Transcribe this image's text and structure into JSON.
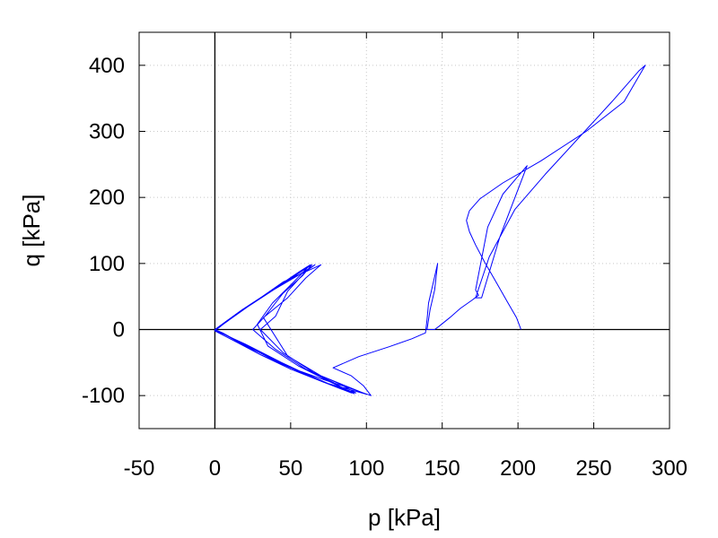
{
  "chart_data": {
    "type": "line",
    "xlabel": "p [kPa]",
    "ylabel": "q [kPa]",
    "xlim": [
      -50,
      300
    ],
    "ylim": [
      -150,
      450
    ],
    "x_ticks": [
      -50,
      0,
      50,
      100,
      150,
      200,
      250,
      300
    ],
    "y_ticks": [
      -100,
      0,
      100,
      200,
      300,
      400
    ],
    "x_tick_labels": [
      "-50",
      "0",
      "50",
      "100",
      "150",
      "200",
      "250",
      "300"
    ],
    "y_tick_labels": [
      "-100",
      "0",
      "100",
      "200",
      "300",
      "400"
    ],
    "grid": true,
    "zero_lines": true,
    "series_color": "#0000ff",
    "series": [
      {
        "points": [
          [
            202,
            0
          ],
          [
            199,
            18
          ],
          [
            193,
            42
          ],
          [
            186,
            70
          ],
          [
            178,
            102
          ],
          [
            172,
            128
          ],
          [
            168,
            148
          ],
          [
            166,
            165
          ],
          [
            168,
            180
          ],
          [
            175,
            198
          ],
          [
            190,
            222
          ],
          [
            215,
            255
          ],
          [
            245,
            300
          ],
          [
            270,
            345
          ],
          [
            284,
            400
          ],
          [
            280,
            392
          ],
          [
            262,
            345
          ],
          [
            240,
            290
          ],
          [
            218,
            235
          ],
          [
            198,
            182
          ],
          [
            181,
            110
          ],
          [
            172,
            48
          ],
          [
            176,
            48
          ],
          [
            188,
            140
          ],
          [
            206,
            248
          ],
          [
            203,
            240
          ],
          [
            190,
            205
          ],
          [
            180,
            155
          ],
          [
            172,
            60
          ],
          [
            174,
            52
          ],
          [
            170,
            45
          ],
          [
            162,
            32
          ],
          [
            155,
            18
          ],
          [
            148,
            5
          ],
          [
            145,
            0
          ],
          [
            142,
            0
          ],
          [
            140,
            0
          ],
          [
            142,
            30
          ],
          [
            145,
            60
          ],
          [
            147,
            100
          ],
          [
            144,
            70
          ],
          [
            141,
            40
          ],
          [
            140,
            15
          ],
          [
            139,
            -5
          ],
          [
            130,
            -14
          ],
          [
            115,
            -26
          ],
          [
            95,
            -41
          ],
          [
            78,
            -58
          ],
          [
            90,
            -70
          ],
          [
            98,
            -85
          ],
          [
            103,
            -100
          ],
          [
            88,
            -88
          ],
          [
            72,
            -76
          ],
          [
            50,
            -58
          ],
          [
            30,
            -38
          ],
          [
            15,
            -20
          ],
          [
            0,
            -2
          ],
          [
            15,
            25
          ],
          [
            35,
            55
          ],
          [
            55,
            82
          ],
          [
            66,
            98
          ],
          [
            60,
            88
          ],
          [
            48,
            58
          ],
          [
            40,
            20
          ],
          [
            30,
            0
          ],
          [
            45,
            -35
          ],
          [
            65,
            -65
          ],
          [
            82,
            -82
          ],
          [
            93,
            -96
          ],
          [
            72,
            -80
          ],
          [
            50,
            -60
          ],
          [
            30,
            -38
          ],
          [
            10,
            -12
          ],
          [
            0,
            0
          ],
          [
            20,
            32
          ],
          [
            40,
            62
          ],
          [
            60,
            92
          ],
          [
            64,
            98
          ],
          [
            58,
            82
          ],
          [
            45,
            55
          ],
          [
            33,
            20
          ],
          [
            25,
            0
          ],
          [
            40,
            -30
          ],
          [
            60,
            -60
          ],
          [
            78,
            -80
          ],
          [
            90,
            -96
          ],
          [
            70,
            -78
          ],
          [
            48,
            -56
          ],
          [
            25,
            -30
          ],
          [
            5,
            -5
          ],
          [
            0,
            0
          ],
          [
            18,
            30
          ],
          [
            38,
            60
          ],
          [
            56,
            88
          ],
          [
            63,
            98
          ],
          [
            52,
            72
          ],
          [
            38,
            40
          ],
          [
            28,
            8
          ],
          [
            35,
            -25
          ],
          [
            55,
            -55
          ],
          [
            75,
            -78
          ],
          [
            92,
            -97
          ],
          [
            68,
            -76
          ],
          [
            44,
            -50
          ],
          [
            20,
            -22
          ],
          [
            0,
            -1
          ],
          [
            22,
            35
          ],
          [
            45,
            72
          ],
          [
            70,
            98
          ],
          [
            60,
            78
          ],
          [
            48,
            48
          ],
          [
            32,
            18
          ],
          [
            48,
            -40
          ],
          [
            70,
            -70
          ],
          [
            100,
            -98
          ],
          [
            75,
            -82
          ],
          [
            48,
            -55
          ],
          [
            22,
            -25
          ],
          [
            0,
            0
          ]
        ]
      }
    ]
  }
}
